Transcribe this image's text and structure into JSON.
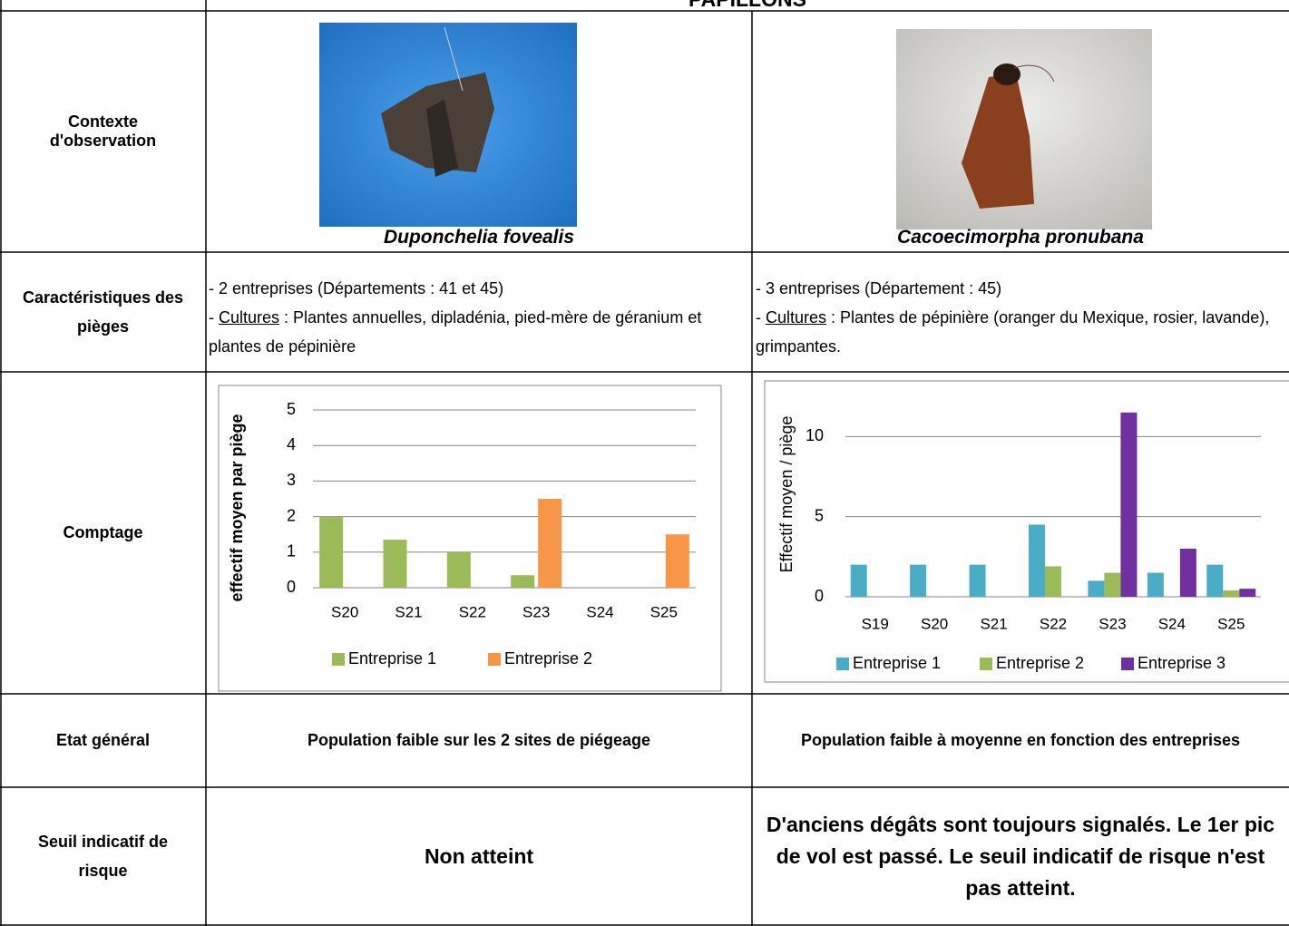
{
  "title": "PAPILLONS",
  "row_labels": [
    "Contexte d'observation",
    "Caractéristiques des pièges",
    "Comptage",
    "Etat général",
    "Seuil indicatif de risque"
  ],
  "species": [
    {
      "caption": "Duponchelia fovealis",
      "traps": {
        "line1": "- 2 entreprises (Départements : 41 et 45)",
        "prefix": "- ",
        "underlined": "Cultures",
        "rest": " : Plantes annuelles, dipladénia, pied-mère de géranium et plantes de pépinière"
      },
      "chart": {
        "type": "bar",
        "y_label": "effectif moyen par piège",
        "categories": [
          "S20",
          "S21",
          "S22",
          "S23",
          "S24",
          "S25"
        ],
        "series": [
          {
            "name": "Entreprise 1",
            "color": "#9bbb59",
            "values": [
              2,
              1.35,
              1,
              0.35,
              0,
              0
            ]
          },
          {
            "name": "Entreprise 2",
            "color": "#f79646",
            "values": [
              0,
              0,
              0,
              2.5,
              0,
              1.5
            ]
          }
        ],
        "ylim": [
          0,
          5
        ],
        "yticks": [
          0,
          1,
          2,
          3,
          4,
          5
        ],
        "grid": true
      },
      "etat": "Population faible sur les 2 sites de piégeage",
      "seuil": "Non atteint"
    },
    {
      "caption": "Cacoecimorpha pronubana",
      "traps": {
        "line1": "- 3 entreprises (Département : 45)",
        "prefix": "- ",
        "underlined": "Cultures",
        "rest": " : Plantes de pépinière (oranger du Mexique, rosier, lavande), grimpantes."
      },
      "chart": {
        "type": "bar",
        "y_label": "Effectif moyen / piège",
        "categories": [
          "S19",
          "S20",
          "S21",
          "S22",
          "S23",
          "S24",
          "S25"
        ],
        "series": [
          {
            "name": "Entreprise 1",
            "color": "#4bacc6",
            "values": [
              2,
              2,
              2,
              4.5,
              1,
              1.5,
              2
            ]
          },
          {
            "name": "Entreprise 2",
            "color": "#9bbb59",
            "values": [
              0,
              0,
              0,
              1.9,
              1.5,
              0,
              0.4
            ]
          },
          {
            "name": "Entreprise 3",
            "color": "#7030a0",
            "values": [
              0,
              0,
              0,
              0,
              11.5,
              3,
              0.5
            ]
          }
        ],
        "ylim": [
          0,
          12
        ],
        "yticks": [
          0,
          5,
          10
        ],
        "grid": true
      },
      "etat": "Population faible à moyenne en fonction des entreprises",
      "seuil": "D'anciens dégâts sont toujours signalés. Le 1er pic de vol est passé. Le seuil indicatif de risque n'est pas atteint."
    }
  ]
}
